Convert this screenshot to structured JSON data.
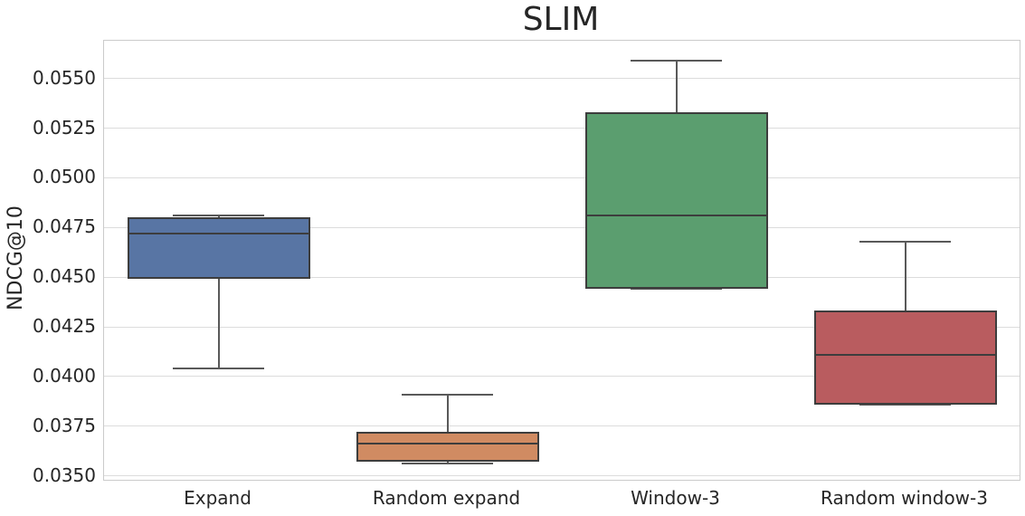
{
  "title": "SLIM",
  "ylabel": "NDCG@10",
  "chart_data": {
    "type": "box",
    "title": "SLIM",
    "xlabel": "",
    "ylabel": "NDCG@10",
    "categories": [
      "Expand",
      "Random expand",
      "Window-3",
      "Random window-3"
    ],
    "series": [
      {
        "name": "Expand",
        "whisker_low": 0.0404,
        "q1": 0.0449,
        "median": 0.0472,
        "q3": 0.048,
        "whisker_high": 0.0481,
        "color": "#5875A4"
      },
      {
        "name": "Random expand",
        "whisker_low": 0.0356,
        "q1": 0.0357,
        "median": 0.0366,
        "q3": 0.0372,
        "whisker_high": 0.0391,
        "color": "#D08B62"
      },
      {
        "name": "Window-3",
        "whisker_low": 0.0444,
        "q1": 0.0444,
        "median": 0.0481,
        "q3": 0.0533,
        "whisker_high": 0.0559,
        "color": "#5B9E6F"
      },
      {
        "name": "Random window-3",
        "whisker_low": 0.0386,
        "q1": 0.0386,
        "median": 0.0411,
        "q3": 0.0433,
        "whisker_high": 0.0468,
        "color": "#B95C5F"
      }
    ],
    "y_tick_values": [
      0.035,
      0.0375,
      0.04,
      0.0425,
      0.045,
      0.0475,
      0.05,
      0.0525,
      0.055
    ],
    "y_tick_labels": [
      "0.0350",
      "0.0375",
      "0.0400",
      "0.0425",
      "0.0450",
      "0.0475",
      "0.0500",
      "0.0525",
      "0.0550"
    ],
    "ylim": [
      0.0348,
      0.0569
    ],
    "grid": true,
    "legend": false
  },
  "colors": {
    "box_edge": "#3d3d3d",
    "whisker": "#595959",
    "gridline": "#dcdcdc",
    "spine": "#cbcbcb",
    "text": "#262626",
    "background": "#ffffff"
  }
}
